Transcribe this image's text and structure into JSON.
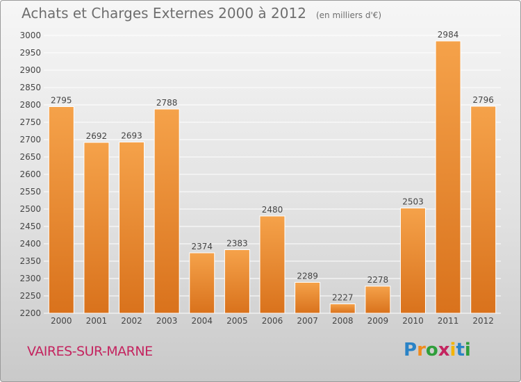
{
  "header": {
    "title": "Achats et Charges Externes 2000 à 2012",
    "subtitle": "(en milliers d'€)"
  },
  "footer": {
    "commune": "VAIRES-SUR-MARNE",
    "brand": "Proxiti",
    "brand_letters": [
      {
        "char": "P",
        "color": "#2a83c6"
      },
      {
        "char": "r",
        "color": "#f08b1d"
      },
      {
        "char": "o",
        "color": "#2e9e3a"
      },
      {
        "char": "x",
        "color": "#c4245f"
      },
      {
        "char": "i",
        "color": "#f4b400"
      },
      {
        "char": "t",
        "color": "#2a83c6"
      },
      {
        "char": "i",
        "color": "#2e9e3a"
      }
    ]
  },
  "colors": {
    "bar_light": "#f5a24a",
    "bar_dark": "#d9721c",
    "bar_edge": "#ffffff",
    "grid": "#ffffff",
    "axis_text": "#444444",
    "title_text": "#6e6e6e",
    "commune_text": "#c4245f"
  },
  "chart_data": {
    "type": "bar",
    "title": "Achats et Charges Externes 2000 à 2012",
    "subtitle": "(en milliers d'€)",
    "xlabel": "",
    "ylabel": "",
    "categories": [
      "2000",
      "2001",
      "2002",
      "2003",
      "2004",
      "2005",
      "2006",
      "2007",
      "2008",
      "2009",
      "2010",
      "2011",
      "2012"
    ],
    "values": [
      2795,
      2692,
      2693,
      2788,
      2374,
      2383,
      2480,
      2289,
      2227,
      2278,
      2503,
      2984,
      2796
    ],
    "ylim": [
      2200,
      3000
    ],
    "yticks": [
      2200,
      2250,
      2300,
      2350,
      2400,
      2450,
      2500,
      2550,
      2600,
      2650,
      2700,
      2750,
      2800,
      2850,
      2900,
      2950,
      3000
    ],
    "grid": true,
    "legend": "none"
  }
}
